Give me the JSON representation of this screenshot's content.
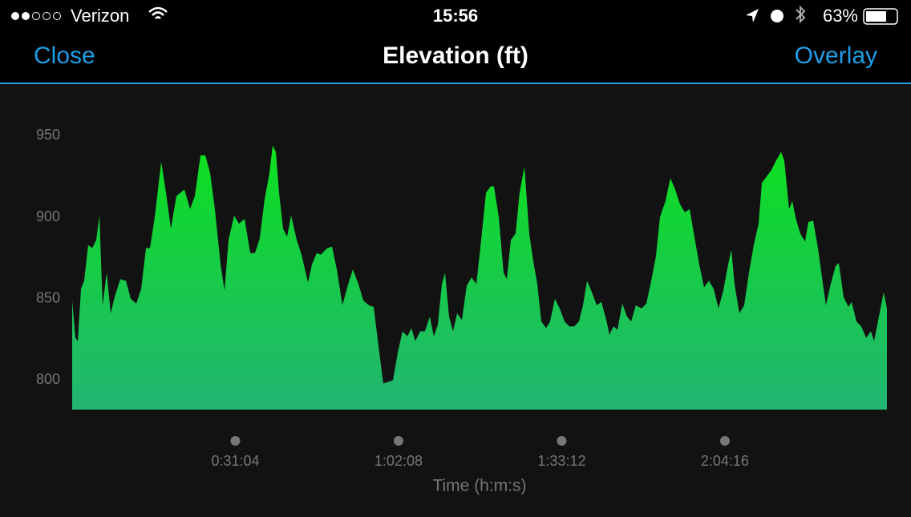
{
  "status_bar": {
    "carrier": "Verizon",
    "time": "15:56",
    "battery": "63%"
  },
  "nav": {
    "left": "Close",
    "title": "Elevation (ft)",
    "right": "Overlay"
  },
  "chart_data": {
    "type": "area",
    "x_label": "Time (h:m:s)",
    "color_top": "#0ce01e",
    "color_bottom": "#22b573",
    "xlim": [
      0,
      9307
    ],
    "ylim": [
      782,
      959
    ],
    "xticks": [
      {
        "value": 1864,
        "label": "0:31:04"
      },
      {
        "value": 3728,
        "label": "1:02:08"
      },
      {
        "value": 5592,
        "label": "1:33:12"
      },
      {
        "value": 7456,
        "label": "2:04:16"
      }
    ],
    "yticks": [
      800,
      850,
      900,
      950
    ],
    "x": [
      0,
      37,
      64,
      101,
      137,
      183,
      229,
      275,
      311,
      348,
      394,
      440,
      485,
      550,
      614,
      669,
      733,
      788,
      843,
      889,
      943,
      1017,
      1072,
      1127,
      1191,
      1282,
      1347,
      1401,
      1466,
      1521,
      1576,
      1630,
      1695,
      1740,
      1786,
      1850,
      1905,
      1969,
      2034,
      2088,
      2143,
      2198,
      2253,
      2290,
      2327,
      2363,
      2409,
      2455,
      2501,
      2565,
      2620,
      2693,
      2739,
      2794,
      2840,
      2913,
      2968,
      3023,
      3087,
      3142,
      3206,
      3270,
      3325,
      3389,
      3444,
      3499,
      3554,
      3609,
      3664,
      3719,
      3774,
      3829,
      3875,
      3920,
      3975,
      4030,
      4085,
      4131,
      4177,
      4223,
      4259,
      4305,
      4351,
      4397,
      4452,
      4507,
      4562,
      4617,
      4672,
      4727,
      4782,
      4818,
      4873,
      4928,
      4965,
      5011,
      5065,
      5111,
      5166,
      5221,
      5267,
      5313,
      5359,
      5414,
      5459,
      5514,
      5569,
      5624,
      5679,
      5734,
      5789,
      5835,
      5881,
      5936,
      5991,
      6046,
      6101,
      6137,
      6183,
      6229,
      6284,
      6339,
      6385,
      6439,
      6504,
      6559,
      6614,
      6668,
      6714,
      6778,
      6833,
      6888,
      6943,
      6998,
      7053,
      7108,
      7163,
      7218,
      7273,
      7328,
      7383,
      7438,
      7493,
      7530,
      7566,
      7621,
      7676,
      7731,
      7786,
      7841,
      7878,
      7933,
      7988,
      8043,
      8097,
      8134,
      8189,
      8226,
      8262,
      8317,
      8372,
      8409,
      8464,
      8519,
      8565,
      8610,
      8665,
      8720,
      8757,
      8812,
      8867,
      8904,
      8959,
      9014,
      9069,
      9124,
      9160,
      9215,
      9270,
      9307
    ],
    "values": [
      849,
      826,
      824,
      856,
      861,
      883,
      881,
      886,
      901,
      846,
      866,
      841,
      851,
      862,
      861,
      850,
      847,
      856,
      881,
      881,
      900,
      934,
      915,
      893,
      913,
      917,
      905,
      913,
      938,
      938,
      927,
      905,
      871,
      855,
      886,
      901,
      896,
      899,
      878,
      878,
      887,
      911,
      927,
      944,
      940,
      915,
      893,
      888,
      901,
      886,
      877,
      860,
      871,
      878,
      877,
      881,
      882,
      868,
      846,
      857,
      868,
      859,
      849,
      846,
      845,
      821,
      798,
      799,
      800,
      817,
      830,
      827,
      832,
      824,
      830,
      830,
      839,
      827,
      834,
      859,
      866,
      839,
      830,
      841,
      837,
      858,
      863,
      859,
      886,
      915,
      919,
      919,
      900,
      866,
      862,
      886,
      890,
      915,
      931,
      890,
      873,
      859,
      836,
      832,
      836,
      850,
      844,
      836,
      833,
      833,
      836,
      846,
      861,
      854,
      846,
      848,
      837,
      828,
      833,
      831,
      847,
      839,
      836,
      846,
      844,
      847,
      861,
      876,
      900,
      910,
      924,
      917,
      908,
      903,
      905,
      888,
      871,
      857,
      861,
      856,
      844,
      855,
      871,
      880,
      859,
      841,
      846,
      866,
      883,
      896,
      921,
      925,
      929,
      935,
      940,
      935,
      905,
      910,
      900,
      890,
      885,
      897,
      898,
      881,
      863,
      846,
      859,
      870,
      872,
      851,
      845,
      848,
      836,
      833,
      826,
      830,
      824,
      839,
      854,
      844
    ]
  }
}
